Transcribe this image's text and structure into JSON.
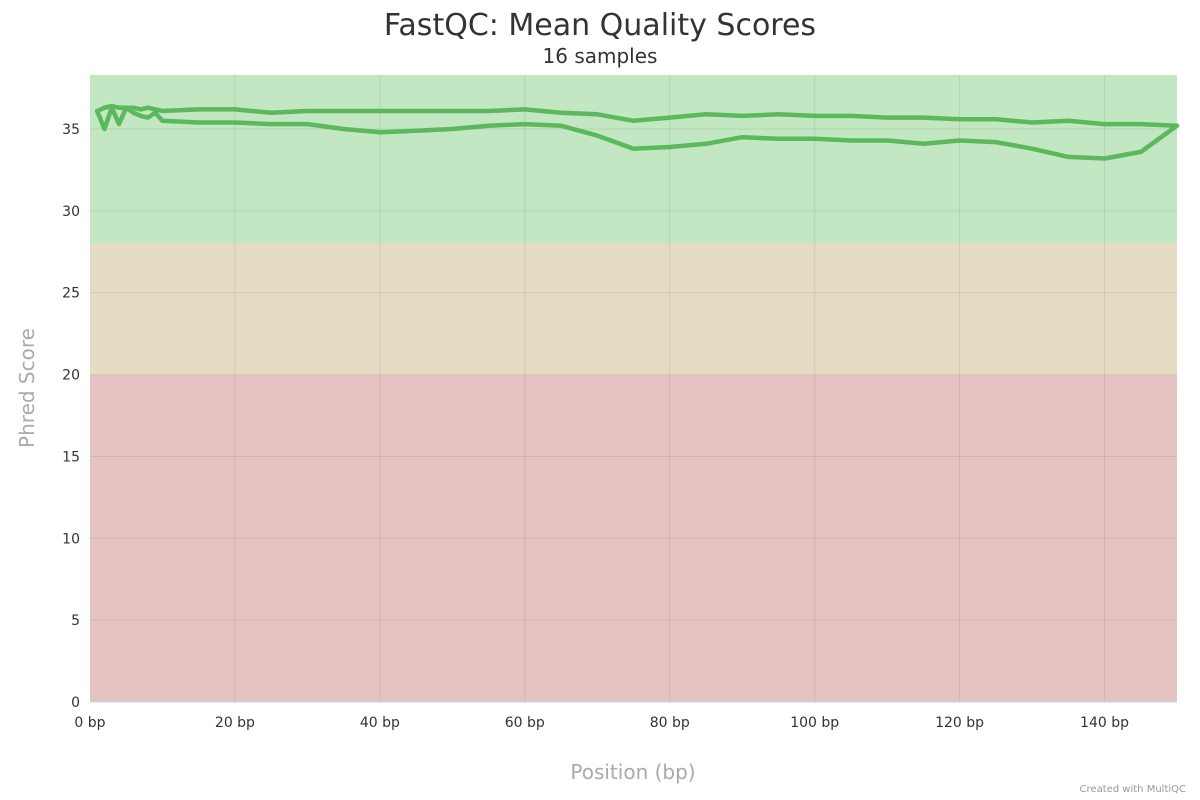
{
  "chart_data": {
    "type": "line",
    "title": "FastQC: Mean Quality Scores",
    "subtitle": "16 samples",
    "xlabel": "Position (bp)",
    "ylabel": "Phred Score",
    "xlim": [
      0,
      150
    ],
    "ylim": [
      0,
      38.3
    ],
    "x_ticks": [
      0,
      20,
      40,
      60,
      80,
      100,
      120,
      140
    ],
    "x_tick_labels": [
      "0 bp",
      "20 bp",
      "40 bp",
      "60 bp",
      "80 bp",
      "100 bp",
      "120 bp",
      "140 bp"
    ],
    "y_ticks": [
      0,
      5,
      10,
      15,
      20,
      25,
      30,
      35
    ],
    "y_tick_labels": [
      "0",
      "5",
      "10",
      "15",
      "20",
      "25",
      "30",
      "35"
    ],
    "grid": true,
    "bands": [
      {
        "from": 28,
        "to": 38.3,
        "color": "#c3e6c3"
      },
      {
        "from": 20,
        "to": 28,
        "color": "#e6dcc3"
      },
      {
        "from": 0,
        "to": 20,
        "color": "#e6c3c3"
      }
    ],
    "line_color": "#5cb85c",
    "series": [
      {
        "x": [
          1,
          2,
          3,
          4,
          5,
          6,
          7,
          8,
          9,
          10,
          15,
          20,
          25,
          30,
          35,
          40,
          45,
          50,
          55,
          60,
          65,
          70,
          75,
          80,
          85,
          90,
          95,
          100,
          105,
          110,
          115,
          120,
          125,
          130,
          135,
          140,
          145,
          150
        ],
        "values": [
          36.1,
          36.3,
          36.4,
          36.3,
          36.3,
          36.3,
          36.2,
          36.3,
          36.2,
          36.1,
          36.2,
          36.2,
          36.0,
          36.1,
          36.1,
          36.1,
          36.1,
          36.1,
          36.1,
          36.2,
          36.0,
          35.9,
          35.5,
          35.7,
          35.9,
          35.8,
          35.9,
          35.8,
          35.8,
          35.7,
          35.7,
          35.6,
          35.6,
          35.4,
          35.5,
          35.3,
          35.3,
          35.2
        ]
      },
      {
        "x": [
          1,
          2,
          3,
          4,
          5,
          6,
          7,
          8,
          9,
          10,
          15,
          20,
          25,
          30,
          35,
          40,
          45,
          50,
          55,
          60,
          65,
          70,
          75,
          80,
          85,
          90,
          95,
          100,
          105,
          110,
          115,
          120,
          125,
          130,
          135,
          140,
          145,
          150
        ],
        "values": [
          36.1,
          35.0,
          36.3,
          35.3,
          36.3,
          36.0,
          35.8,
          35.7,
          36.0,
          35.5,
          35.4,
          35.4,
          35.3,
          35.3,
          35.0,
          34.8,
          34.9,
          35.0,
          35.2,
          35.3,
          35.2,
          34.6,
          33.8,
          33.9,
          34.1,
          34.5,
          34.4,
          34.4,
          34.3,
          34.3,
          34.1,
          34.3,
          34.2,
          33.8,
          33.3,
          33.2,
          33.6,
          35.2
        ]
      }
    ]
  },
  "credit": "Created with MultiQC"
}
